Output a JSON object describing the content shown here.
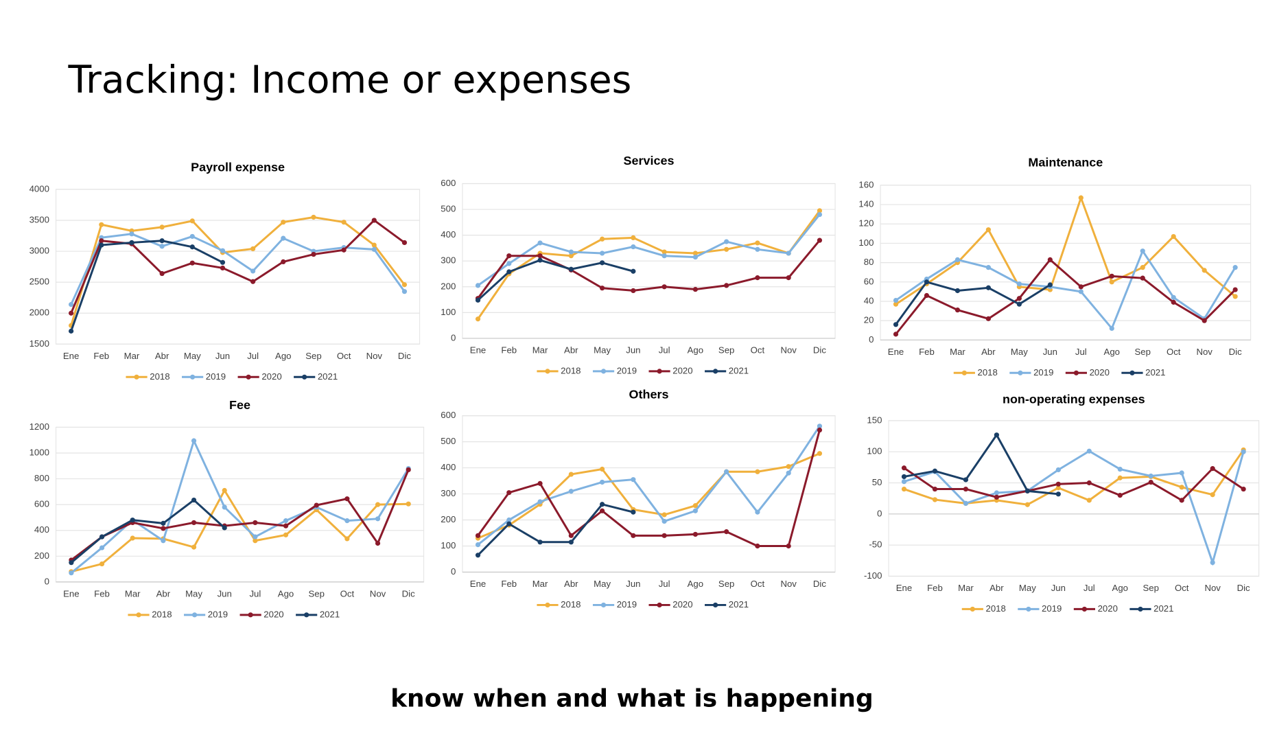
{
  "title": "Tracking: Income or expenses",
  "footer": "know when and what is happening",
  "chart_data": [
    {
      "type": "line",
      "title": "Payroll expense",
      "categories": [
        "Ene",
        "Feb",
        "Mar",
        "Abr",
        "May",
        "Jun",
        "Jul",
        "Ago",
        "Sep",
        "Oct",
        "Nov",
        "Dic"
      ],
      "ylim": [
        1500,
        4000
      ],
      "yticks": [
        1500,
        2000,
        2500,
        3000,
        3500,
        4000
      ],
      "grid": true,
      "series": [
        {
          "name": "2018",
          "color": "#f0b03c",
          "values": [
            1800,
            3430,
            3330,
            3390,
            3490,
            2980,
            3040,
            3470,
            3550,
            3470,
            3100,
            2460
          ]
        },
        {
          "name": "2019",
          "color": "#7fb2e0",
          "values": [
            2140,
            3220,
            3280,
            3080,
            3240,
            3010,
            2680,
            3210,
            3000,
            3060,
            3030,
            2350
          ]
        },
        {
          "name": "2020",
          "color": "#8b1a2b",
          "values": [
            2000,
            3170,
            3120,
            2640,
            2810,
            2730,
            2510,
            2830,
            2950,
            3020,
            3500,
            3140
          ]
        },
        {
          "name": "2021",
          "color": "#1a3f66",
          "values": [
            1710,
            3100,
            3140,
            3170,
            3070,
            2820,
            null,
            null,
            null,
            null,
            null,
            null
          ]
        }
      ]
    },
    {
      "type": "line",
      "title": "Services",
      "categories": [
        "Ene",
        "Feb",
        "Mar",
        "Abr",
        "May",
        "Jun",
        "Jul",
        "Ago",
        "Sep",
        "Oct",
        "Nov",
        "Dic"
      ],
      "ylim": [
        0,
        600
      ],
      "yticks": [
        0,
        100,
        200,
        300,
        400,
        500,
        600
      ],
      "grid": true,
      "series": [
        {
          "name": "2018",
          "color": "#f0b03c",
          "values": [
            75,
            250,
            330,
            320,
            385,
            390,
            335,
            330,
            345,
            370,
            330,
            495
          ]
        },
        {
          "name": "2019",
          "color": "#7fb2e0",
          "values": [
            205,
            290,
            370,
            335,
            330,
            355,
            320,
            315,
            375,
            345,
            330,
            480
          ]
        },
        {
          "name": "2020",
          "color": "#8b1a2b",
          "values": [
            155,
            320,
            320,
            265,
            195,
            185,
            200,
            190,
            205,
            235,
            235,
            380
          ]
        },
        {
          "name": "2021",
          "color": "#1a3f66",
          "values": [
            148,
            258,
            303,
            268,
            293,
            260,
            null,
            null,
            null,
            null,
            null,
            null
          ]
        }
      ]
    },
    {
      "type": "line",
      "title": "Maintenance",
      "categories": [
        "Ene",
        "Feb",
        "Mar",
        "Abr",
        "May",
        "Jun",
        "Jul",
        "Ago",
        "Sep",
        "Oct",
        "Nov",
        "Dic"
      ],
      "ylim": [
        0,
        160
      ],
      "yticks": [
        0,
        20,
        40,
        60,
        80,
        100,
        120,
        140,
        160
      ],
      "grid": true,
      "series": [
        {
          "name": "2018",
          "color": "#f0b03c",
          "values": [
            37,
            58,
            80,
            114,
            55,
            52,
            147,
            60,
            75,
            107,
            72,
            45
          ]
        },
        {
          "name": "2019",
          "color": "#7fb2e0",
          "values": [
            41,
            63,
            83,
            75,
            58,
            55,
            50,
            12,
            92,
            44,
            22,
            75
          ]
        },
        {
          "name": "2020",
          "color": "#8b1a2b",
          "values": [
            6,
            46,
            31,
            22,
            43,
            83,
            55,
            66,
            64,
            39,
            20,
            52
          ]
        },
        {
          "name": "2021",
          "color": "#1a3f66",
          "values": [
            16,
            60,
            51,
            54,
            37,
            57,
            null,
            null,
            null,
            null,
            null,
            null
          ]
        }
      ]
    },
    {
      "type": "line",
      "title": "Fee",
      "categories": [
        "Ene",
        "Feb",
        "Mar",
        "Abr",
        "May",
        "Jun",
        "Jul",
        "Ago",
        "Sep",
        "Oct",
        "Nov",
        "Dic"
      ],
      "ylim": [
        0,
        1200
      ],
      "yticks": [
        0,
        200,
        400,
        600,
        800,
        1000,
        1200
      ],
      "grid": true,
      "series": [
        {
          "name": "2018",
          "color": "#f0b03c",
          "values": [
            80,
            140,
            340,
            335,
            270,
            710,
            320,
            365,
            560,
            335,
            600,
            605
          ]
        },
        {
          "name": "2019",
          "color": "#7fb2e0",
          "values": [
            70,
            265,
            480,
            320,
            1095,
            580,
            350,
            475,
            580,
            475,
            490,
            880
          ]
        },
        {
          "name": "2020",
          "color": "#8b1a2b",
          "values": [
            170,
            350,
            460,
            415,
            460,
            435,
            460,
            435,
            595,
            645,
            300,
            870
          ]
        },
        {
          "name": "2021",
          "color": "#1a3f66",
          "values": [
            150,
            350,
            480,
            455,
            635,
            420,
            null,
            null,
            null,
            null,
            null,
            null
          ]
        }
      ]
    },
    {
      "type": "line",
      "title": "Others",
      "categories": [
        "Ene",
        "Feb",
        "Mar",
        "Abr",
        "May",
        "Jun",
        "Jul",
        "Ago",
        "Sep",
        "Oct",
        "Nov",
        "Dic"
      ],
      "ylim": [
        0,
        600
      ],
      "yticks": [
        0,
        100,
        200,
        300,
        400,
        500,
        600
      ],
      "grid": true,
      "series": [
        {
          "name": "2018",
          "color": "#f0b03c",
          "values": [
            130,
            180,
            260,
            375,
            395,
            240,
            220,
            255,
            385,
            385,
            405,
            455
          ]
        },
        {
          "name": "2019",
          "color": "#7fb2e0",
          "values": [
            105,
            200,
            270,
            310,
            345,
            355,
            195,
            235,
            385,
            230,
            380,
            560
          ]
        },
        {
          "name": "2020",
          "color": "#8b1a2b",
          "values": [
            140,
            305,
            340,
            140,
            235,
            140,
            140,
            145,
            155,
            100,
            100,
            545
          ]
        },
        {
          "name": "2021",
          "color": "#1a3f66",
          "values": [
            65,
            185,
            115,
            115,
            260,
            230,
            null,
            null,
            null,
            null,
            null,
            null
          ]
        }
      ]
    },
    {
      "type": "line",
      "title": "non-operating expenses",
      "categories": [
        "Ene",
        "Feb",
        "Mar",
        "Abr",
        "May",
        "Jun",
        "Jul",
        "Ago",
        "Sep",
        "Oct",
        "Nov",
        "Dic"
      ],
      "ylim": [
        -100,
        150
      ],
      "yticks": [
        -100,
        -50,
        0,
        50,
        100,
        150
      ],
      "grid": true,
      "series": [
        {
          "name": "2018",
          "color": "#f0b03c",
          "values": [
            40,
            23,
            17,
            22,
            15,
            42,
            22,
            58,
            60,
            43,
            31,
            103
          ]
        },
        {
          "name": "2019",
          "color": "#7fb2e0",
          "values": [
            52,
            68,
            17,
            34,
            37,
            71,
            101,
            72,
            61,
            66,
            -78,
            100
          ]
        },
        {
          "name": "2020",
          "color": "#8b1a2b",
          "values": [
            74,
            40,
            40,
            27,
            37,
            48,
            50,
            30,
            51,
            22,
            73,
            40
          ]
        },
        {
          "name": "2021",
          "color": "#1a3f66",
          "values": [
            60,
            69,
            55,
            127,
            37,
            32,
            null,
            null,
            null,
            null,
            null,
            null
          ]
        }
      ]
    }
  ]
}
